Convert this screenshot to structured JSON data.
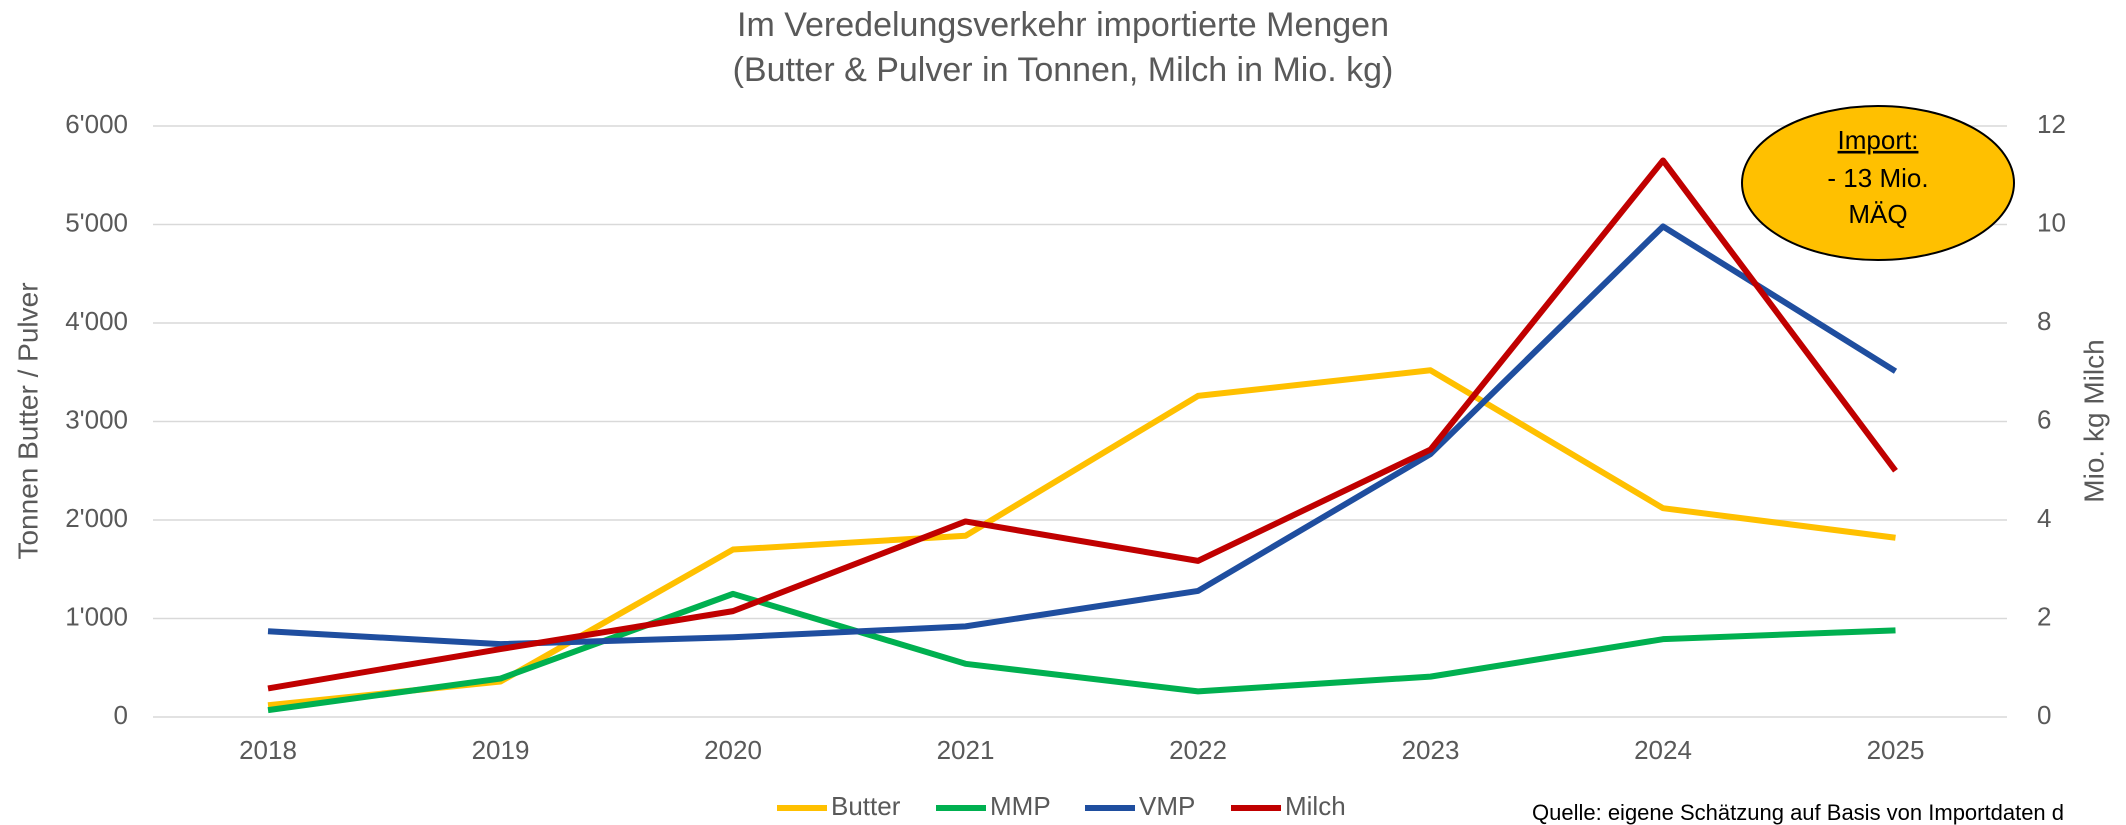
{
  "chart_data": {
    "type": "line",
    "title": [
      "Im Veredelungsverkehr importierte Mengen",
      "(Butter & Pulver in Tonnen, Milch in Mio. kg)"
    ],
    "ylabel": "Tonnen Butter / Pulver",
    "y2label": "Mio. kg Milch",
    "categories": [
      "2018",
      "2019",
      "2020",
      "2021",
      "2022",
      "2023",
      "2024",
      "2025"
    ],
    "series": [
      {
        "name": "Butter",
        "color": "#FFC000",
        "values": [
          120,
          360,
          1700,
          1840,
          3260,
          3520,
          2120,
          1820
        ]
      },
      {
        "name": "MMP",
        "color": "#00B050",
        "values": [
          70,
          390,
          1250,
          540,
          260,
          410,
          790,
          880
        ]
      },
      {
        "name": "VMP",
        "color": "#1F4E9F",
        "values": [
          870,
          740,
          810,
          920,
          1280,
          2670,
          4980,
          3510
        ]
      },
      {
        "name": "Milch",
        "color": "#C00000",
        "axis": "y2",
        "values": [
          0.58,
          1.38,
          2.15,
          3.97,
          3.17,
          5.43,
          11.3,
          5.0
        ]
      }
    ],
    "ylim": [
      0,
      6000
    ],
    "yticks": [
      0,
      {
        "value": 1000,
        "label": "1'000"
      },
      {
        "value": 2000,
        "label": "2'000"
      },
      {
        "value": 3000,
        "label": "3'000"
      },
      {
        "value": 4000,
        "label": "4'000"
      },
      {
        "value": 5000,
        "label": "5'000"
      },
      {
        "value": 6000,
        "label": "6'000"
      }
    ],
    "y2lim": [
      0,
      12
    ],
    "y2ticks": [
      0,
      2,
      4,
      6,
      8,
      10,
      12
    ],
    "grid": true,
    "legend": "bottom",
    "annotation": [
      "Import:",
      "- 13 Mio.",
      "MÄQ"
    ],
    "annotation_color": "#FFC000",
    "source": "Quelle: eigene Schätzung auf Basis von Importdaten d"
  }
}
